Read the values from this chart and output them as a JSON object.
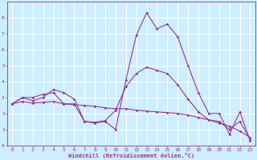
{
  "background_color": "#cceeff",
  "plot_bg_color": "#cceeff",
  "line_color": "#993399",
  "marker_color": "#993399",
  "grid_color": "#ffffff",
  "xlabel": "Windchill (Refroidissement éolien,°C)",
  "xlim": [
    -0.5,
    23.5
  ],
  "ylim": [
    0,
    9
  ],
  "xticks": [
    0,
    1,
    2,
    3,
    4,
    5,
    6,
    7,
    8,
    9,
    10,
    11,
    12,
    13,
    14,
    15,
    16,
    17,
    18,
    19,
    20,
    21,
    22,
    23
  ],
  "yticks": [
    0,
    1,
    2,
    3,
    4,
    5,
    6,
    7,
    8
  ],
  "curve1_x": [
    0,
    1,
    2,
    3,
    4,
    5,
    6,
    7,
    8,
    9,
    10,
    11,
    12,
    13,
    14,
    15,
    16,
    17,
    18,
    19,
    20,
    21,
    22,
    23
  ],
  "curve1_y": [
    2.6,
    3.0,
    3.0,
    3.2,
    3.3,
    2.6,
    2.6,
    1.5,
    1.4,
    1.5,
    1.0,
    4.1,
    6.9,
    8.3,
    7.3,
    7.6,
    6.8,
    5.0,
    3.3,
    2.0,
    2.0,
    0.7,
    2.1,
    0.3
  ],
  "curve2_x": [
    0,
    1,
    2,
    3,
    4,
    5,
    6,
    7,
    8,
    9,
    10,
    11,
    12,
    13,
    14,
    15,
    16,
    17,
    18,
    19,
    20,
    21,
    22,
    23
  ],
  "curve2_y": [
    2.6,
    2.75,
    2.65,
    2.7,
    2.75,
    2.6,
    2.55,
    2.5,
    2.45,
    2.35,
    2.3,
    2.3,
    2.2,
    2.15,
    2.1,
    2.05,
    2.0,
    1.9,
    1.75,
    1.6,
    1.4,
    1.2,
    0.9,
    0.5
  ],
  "curve3_x": [
    0,
    1,
    2,
    3,
    4,
    5,
    6,
    7,
    8,
    9,
    10,
    11,
    12,
    13,
    14,
    15,
    16,
    17,
    18,
    19,
    20,
    21,
    22,
    23
  ],
  "curve3_y": [
    2.6,
    3.0,
    2.8,
    3.0,
    3.5,
    3.3,
    2.9,
    1.5,
    1.45,
    1.55,
    2.2,
    3.7,
    4.5,
    4.9,
    4.7,
    4.5,
    3.8,
    2.9,
    2.1,
    1.6,
    1.5,
    1.0,
    1.5,
    0.4
  ]
}
